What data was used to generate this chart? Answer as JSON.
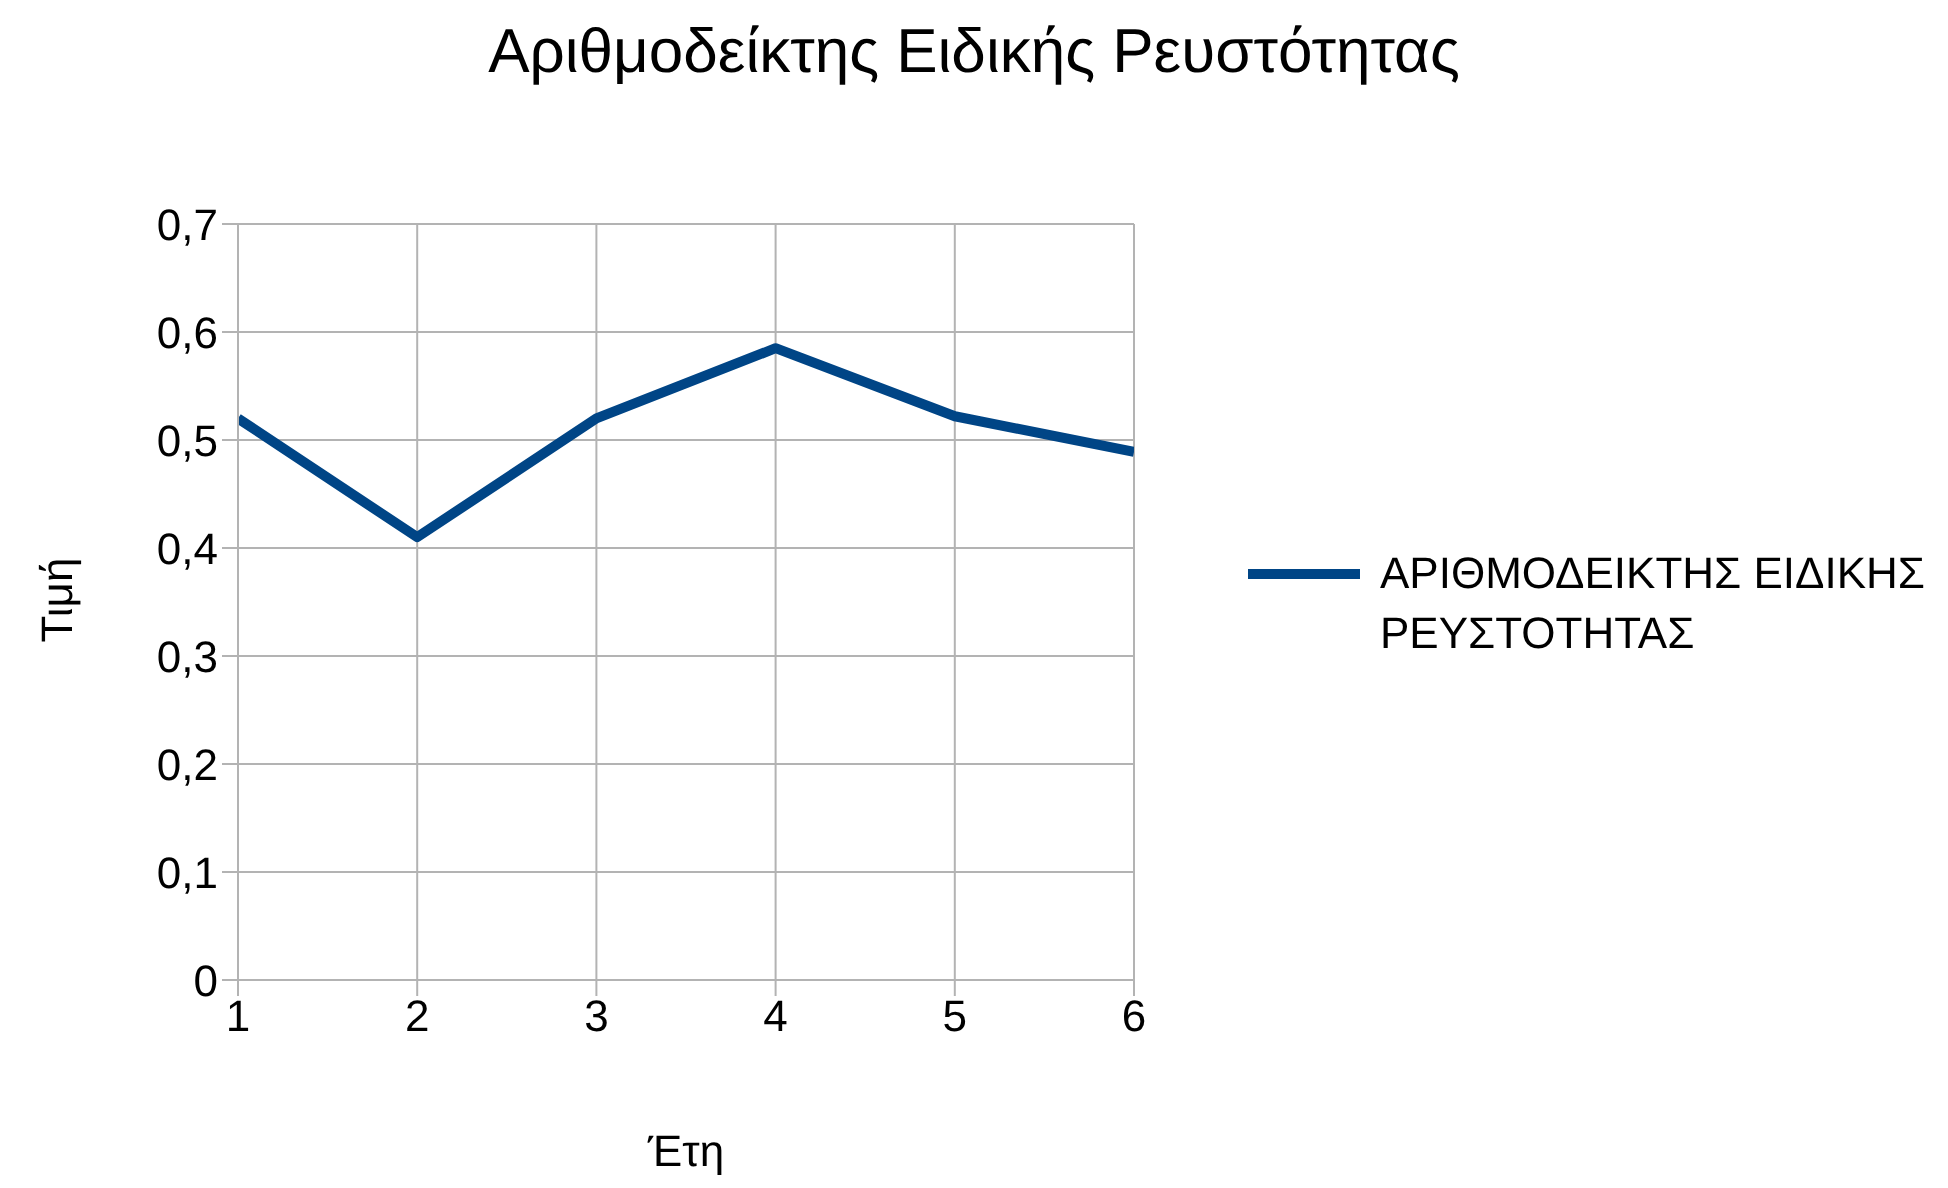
{
  "chart_data": {
    "type": "line",
    "title": "Αριθμοδείκτης Ειδικής Ρευστότητας",
    "xlabel": "Έτη",
    "ylabel": "Τιμή",
    "x": [
      1,
      2,
      3,
      4,
      5,
      6
    ],
    "series": [
      {
        "name": "ΑΡΙΘΜΟΔΕΙΚΤΗΣ ΕΙΔΙΚΗΣ ΡΕΥΣΤΟΤΗΤΑΣ",
        "color": "#004586",
        "values": [
          0.52,
          0.41,
          0.52,
          0.585,
          0.522,
          0.489
        ]
      }
    ],
    "xlim": [
      1,
      6
    ],
    "xticks": [
      1,
      2,
      3,
      4,
      5,
      6
    ],
    "ylim": [
      0,
      0.7
    ],
    "yticks": [
      0,
      {
        "value": 0.1,
        "label": "0,1"
      },
      {
        "value": 0.2,
        "label": "0,2"
      },
      {
        "value": 0.3,
        "label": "0,3"
      },
      {
        "value": 0.4,
        "label": "0,4"
      },
      {
        "value": 0.5,
        "label": "0,5"
      },
      {
        "value": 0.6,
        "label": "0,6"
      },
      {
        "value": 0.7,
        "label": "0,7"
      }
    ],
    "grid": true,
    "legend": "right",
    "marker": "none",
    "line_style": "solid"
  }
}
